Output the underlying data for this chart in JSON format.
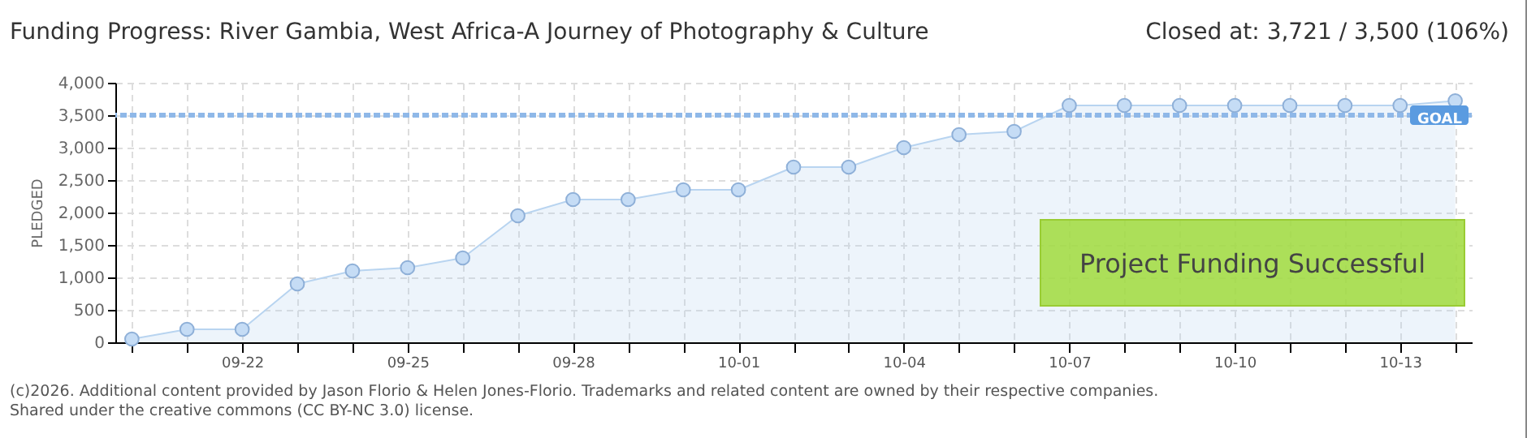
{
  "chart_data": {
    "type": "area",
    "title": "Funding Progress: River Gambia, West Africa-A Journey of Photography & Culture",
    "ylabel": "PLEDGED",
    "annotations": [
      "Closed at:  3,721 /  3,500 (106%)",
      "Project Funding Successful",
      "(c)2026. Additional content provided by Jason Florio & Helen Jones-Florio. Trademarks and related content are owned by their respective companies.",
      "Shared under the creative commons (CC BY-NC 3.0) license."
    ],
    "categories": [
      null,
      null,
      "09-22",
      null,
      null,
      "09-25",
      null,
      null,
      "09-28",
      null,
      null,
      "10-01",
      null,
      null,
      "10-04",
      null,
      null,
      "10-07",
      null,
      null,
      "10-10",
      null,
      null,
      "10-13",
      null
    ],
    "series": [
      {
        "color": "#b8d4f0",
        "values": [
          50,
          200,
          200,
          900,
          1100,
          1150,
          1300,
          1950,
          2200,
          2200,
          2350,
          2350,
          2700,
          2700,
          3000,
          3200,
          3250,
          3650,
          3650,
          3650,
          3650,
          3650,
          3650,
          3650,
          3721
        ]
      }
    ],
    "ylim": [
      0,
      4000
    ],
    "yticks": [
      {
        "value": 0,
        "label": "0"
      },
      {
        "value": 500,
        "label": "500"
      },
      {
        "value": 1000,
        "label": "1,000"
      },
      {
        "value": 1500,
        "label": "1,500"
      },
      {
        "value": 2000,
        "label": "2,000"
      },
      {
        "value": 2500,
        "label": "2,500"
      },
      {
        "value": 3000,
        "label": "3,000"
      },
      {
        "value": 3500,
        "label": "3,500"
      },
      {
        "value": 4000,
        "label": "4,000"
      }
    ],
    "ref_lines": [
      {
        "axis": "y",
        "value": 3500,
        "label": "GOAL",
        "color": "#8fb8e8",
        "line_style": "dashed"
      }
    ],
    "grid": true,
    "marker": "circle",
    "line_style": "solid"
  }
}
